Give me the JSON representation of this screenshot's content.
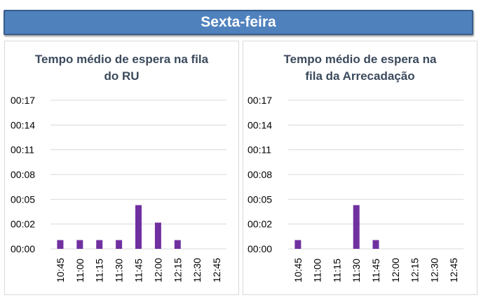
{
  "header": {
    "title": "Sexta-feira"
  },
  "colors": {
    "bar": "#7030a0",
    "banner": "#4f81bd",
    "grid": "#d9d9d9"
  },
  "chart_data": [
    {
      "type": "bar",
      "title_lines": [
        "Tempo médio de espera na fila",
        "do RU"
      ],
      "categories": [
        "10:45",
        "11:00",
        "11:15",
        "11:30",
        "11:45",
        "12:00",
        "12:15",
        "12:30",
        "12:45"
      ],
      "values_minutes": [
        1,
        1,
        1,
        1,
        5,
        3,
        1,
        0,
        0
      ],
      "yticks": [
        "00:00",
        "00:02",
        "00:05",
        "00:08",
        "00:11",
        "00:14",
        "00:17"
      ],
      "ylim_minutes": [
        0,
        17
      ],
      "grid": true
    },
    {
      "type": "bar",
      "title_lines": [
        "Tempo médio de espera na",
        "fila da Arrecadação"
      ],
      "categories": [
        "10:45",
        "11:00",
        "11:15",
        "11:30",
        "11:45",
        "12:00",
        "12:15",
        "12:30",
        "12:45"
      ],
      "values_minutes": [
        1,
        0,
        0,
        5,
        1,
        0,
        0,
        0,
        0
      ],
      "yticks": [
        "00:00",
        "00:02",
        "00:05",
        "00:08",
        "00:11",
        "00:14",
        "00:17"
      ],
      "ylim_minutes": [
        0,
        17
      ],
      "grid": true
    }
  ]
}
